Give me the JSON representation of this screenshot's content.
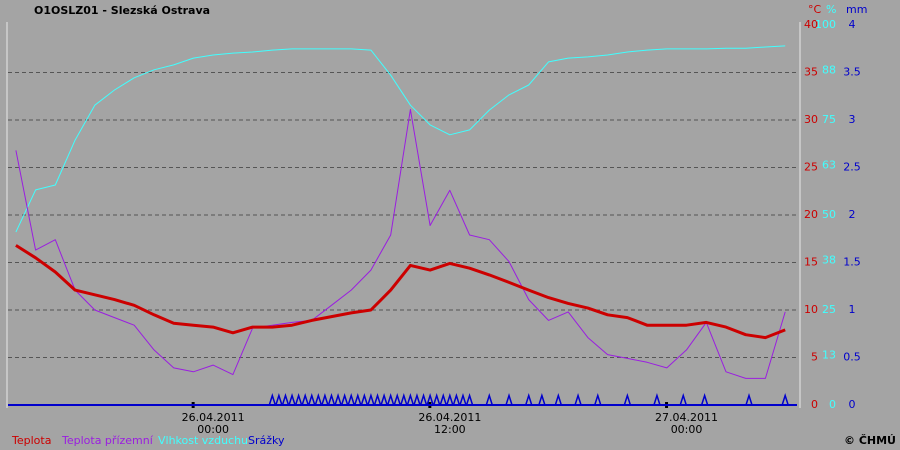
{
  "chart_data": {
    "type": "line",
    "title": "O1OSLZ01 - Slezská Ostrava",
    "credit": "© ČHMÚ",
    "y_unit": "°C",
    "y2_unit": "%",
    "y3_unit": "mm",
    "xlim": [
      "2011-04-25T13:36",
      "2011-04-27T05:36"
    ],
    "xticks": [
      {
        "value": "2011-04-26T00:00",
        "label": "26.04.2011 00:00"
      },
      {
        "value": "2011-04-26T12:00",
        "label": "26.04.2011 12:00"
      },
      {
        "value": "2011-04-27T00:00",
        "label": "27.04.2011 00:00"
      }
    ],
    "ylim": [
      0,
      40
    ],
    "yticks": [
      0,
      5,
      10,
      15,
      20,
      25,
      30,
      35,
      40
    ],
    "y2lim": [
      0,
      100
    ],
    "y2ticks": [
      0,
      13,
      25,
      38,
      50,
      63,
      75,
      88,
      100
    ],
    "y3lim": [
      0,
      4
    ],
    "y3ticks": [
      0,
      0.5,
      1,
      1.5,
      2,
      2.5,
      3,
      3.5,
      4
    ],
    "grid": true,
    "x": [
      "2011-04-25T14:00",
      "2011-04-25T15:00",
      "2011-04-25T16:00",
      "2011-04-25T17:00",
      "2011-04-25T18:00",
      "2011-04-25T19:00",
      "2011-04-25T20:00",
      "2011-04-25T21:00",
      "2011-04-25T22:00",
      "2011-04-25T23:00",
      "2011-04-26T00:00",
      "2011-04-26T01:00",
      "2011-04-26T02:00",
      "2011-04-26T03:00",
      "2011-04-26T04:00",
      "2011-04-26T05:00",
      "2011-04-26T06:00",
      "2011-04-26T07:00",
      "2011-04-26T08:00",
      "2011-04-26T09:00",
      "2011-04-26T10:00",
      "2011-04-26T11:00",
      "2011-04-26T12:00",
      "2011-04-26T13:00",
      "2011-04-26T14:00",
      "2011-04-26T15:00",
      "2011-04-26T16:00",
      "2011-04-26T17:00",
      "2011-04-26T18:00",
      "2011-04-26T19:00",
      "2011-04-26T20:00",
      "2011-04-26T21:00",
      "2011-04-26T22:00",
      "2011-04-26T23:00",
      "2011-04-27T00:00",
      "2011-04-27T01:00",
      "2011-04-27T02:00",
      "2011-04-27T03:00",
      "2011-04-27T04:00",
      "2011-04-27T05:00"
    ],
    "series": [
      {
        "name": "Teplota",
        "color": "#cc0000",
        "width": 3,
        "values": [
          16.8,
          15.5,
          14.0,
          12.1,
          11.6,
          11.1,
          10.5,
          9.5,
          8.6,
          8.4,
          8.2,
          7.6,
          8.2,
          8.2,
          8.4,
          8.9,
          9.3,
          9.7,
          10.0,
          12.1,
          14.7,
          14.2,
          14.9,
          14.4,
          13.7,
          12.9,
          12.1,
          11.3,
          10.7,
          10.2,
          9.5,
          9.2,
          8.4,
          8.4,
          8.4,
          8.7,
          8.2,
          7.4,
          7.1,
          7.9
        ]
      },
      {
        "name": "Teplota přízemní",
        "color": "#9a1ee0",
        "width": 1,
        "values": [
          26.8,
          16.3,
          17.4,
          12.1,
          10.0,
          9.2,
          8.4,
          5.8,
          3.9,
          3.5,
          4.2,
          3.2,
          8.1,
          8.4,
          8.7,
          8.9,
          10.5,
          12.1,
          14.2,
          17.9,
          31.1,
          18.9,
          22.6,
          17.9,
          17.4,
          15.1,
          11.1,
          8.9,
          9.8,
          7.1,
          5.3,
          4.9,
          4.5,
          3.9,
          5.8,
          8.7,
          3.5,
          2.8,
          2.8,
          9.8
        ]
      },
      {
        "name": "Vlhkost vzduchu",
        "color": "#40ffff",
        "width": 1,
        "axis": "y2",
        "values": [
          45.5,
          56.6,
          57.9,
          69.7,
          78.9,
          82.9,
          86.1,
          88.2,
          89.5,
          91.3,
          92.1,
          92.6,
          92.9,
          93.4,
          93.7,
          93.7,
          93.7,
          93.7,
          93.4,
          86.8,
          78.9,
          73.7,
          71.1,
          72.4,
          77.6,
          81.6,
          84.2,
          90.3,
          91.3,
          91.6,
          92.1,
          92.9,
          93.4,
          93.7,
          93.7,
          93.7,
          93.9,
          93.9,
          94.2,
          94.5
        ]
      },
      {
        "name": "Srážky",
        "color": "#0000cc",
        "type": "spike",
        "axis": "y3",
        "x": [
          "2011-04-26T03:00",
          "2011-04-26T03:20",
          "2011-04-26T03:40",
          "2011-04-26T04:00",
          "2011-04-26T04:20",
          "2011-04-26T04:40",
          "2011-04-26T05:00",
          "2011-04-26T05:20",
          "2011-04-26T05:40",
          "2011-04-26T06:00",
          "2011-04-26T06:20",
          "2011-04-26T06:40",
          "2011-04-26T07:00",
          "2011-04-26T07:20",
          "2011-04-26T07:40",
          "2011-04-26T08:00",
          "2011-04-26T08:20",
          "2011-04-26T08:40",
          "2011-04-26T09:00",
          "2011-04-26T09:20",
          "2011-04-26T09:40",
          "2011-04-26T10:00",
          "2011-04-26T10:20",
          "2011-04-26T10:40",
          "2011-04-26T11:00",
          "2011-04-26T11:20",
          "2011-04-26T11:40",
          "2011-04-26T12:00",
          "2011-04-26T12:20",
          "2011-04-26T12:40",
          "2011-04-26T13:00",
          "2011-04-26T14:00",
          "2011-04-26T15:00",
          "2011-04-26T16:00",
          "2011-04-26T16:40",
          "2011-04-26T17:30",
          "2011-04-26T18:30",
          "2011-04-26T19:30",
          "2011-04-26T21:00",
          "2011-04-26T22:30",
          "2011-04-26T23:50",
          "2011-04-27T00:55",
          "2011-04-27T03:10",
          "2011-04-27T05:00"
        ],
        "values": [
          0.1,
          0.1,
          0.1,
          0.1,
          0.1,
          0.1,
          0.1,
          0.1,
          0.1,
          0.1,
          0.1,
          0.1,
          0.1,
          0.1,
          0.1,
          0.1,
          0.1,
          0.1,
          0.1,
          0.1,
          0.1,
          0.1,
          0.1,
          0.1,
          0.1,
          0.1,
          0.1,
          0.1,
          0.1,
          0.1,
          0.1,
          0.1,
          0.1,
          0.1,
          0.1,
          0.1,
          0.1,
          0.1,
          0.1,
          0.1,
          0.1,
          0.1,
          0.1,
          0.1
        ]
      }
    ]
  }
}
